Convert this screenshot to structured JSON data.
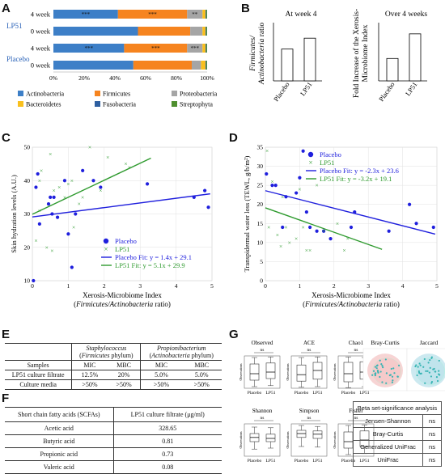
{
  "panel_labels": {
    "A": "A",
    "B": "B",
    "C": "C",
    "D": "D",
    "E": "E",
    "F": "F",
    "G": "G"
  },
  "chart_data": [
    {
      "id": "A",
      "type": "bar",
      "orientation": "horizontal-stacked",
      "groups": [
        "LP51",
        "Placebo"
      ],
      "categories": [
        "4 week",
        "0 week",
        "4 week",
        "0 week"
      ],
      "xticks": [
        "0%",
        "20%",
        "40%",
        "60%",
        "80%",
        "100%"
      ],
      "series": [
        {
          "name": "Actinobacteria",
          "color": "#3d7fc7",
          "values": [
            42,
            55,
            46,
            52
          ]
        },
        {
          "name": "Firmicutes",
          "color": "#f6841f",
          "values": [
            45,
            34,
            41,
            38
          ]
        },
        {
          "name": "Proteobacteria",
          "color": "#a5a5a5",
          "values": [
            10,
            8,
            10,
            6
          ]
        },
        {
          "name": "Bacteroidetes",
          "color": "#f9c01e",
          "values": [
            2,
            2,
            2,
            3
          ]
        },
        {
          "name": "Fusobacteria",
          "color": "#2e5fa0",
          "values": [
            0.5,
            0.5,
            0.5,
            0.5
          ]
        },
        {
          "name": "Streptophyta",
          "color": "#4f8f2f",
          "values": [
            0.5,
            0.5,
            0.5,
            0.5
          ]
        }
      ],
      "annotations": [
        {
          "row": 0,
          "labels": [
            "***",
            "***",
            "**"
          ]
        },
        {
          "row": 2,
          "labels": [
            "***",
            "***",
            "***"
          ]
        }
      ]
    },
    {
      "id": "B1",
      "type": "bar",
      "title": "At week 4",
      "ylabel": "Firmicutes/ Actinobacteria ratio",
      "categories": [
        "Placebo",
        "LP51"
      ],
      "values": [
        0.82,
        1.1
      ],
      "ylim": [
        0,
        1.5
      ]
    },
    {
      "id": "B2",
      "type": "bar",
      "title": "Over 4 weeks",
      "ylabel": "Fold Increase of the Xerosis-Microbiome Index",
      "categories": [
        "Placebo",
        "LP51"
      ],
      "values": [
        1.0,
        2.1
      ],
      "ylim": [
        0,
        2.6
      ]
    },
    {
      "id": "C",
      "type": "scatter",
      "xlabel": "Xerosis-Microbiome Index",
      "xlabel2": "(Firmicutes/Actinobacteria ratio)",
      "ylabel": "Skin hydration levels (A.U.)",
      "xlim": [
        0,
        5
      ],
      "ylim": [
        10,
        50
      ],
      "xticks": [
        "0",
        "1",
        "2",
        "3",
        "4",
        "5"
      ],
      "yticks": [
        "10",
        "20",
        "30",
        "40",
        "50"
      ],
      "legend": [
        "Placebo",
        "LP51",
        "Placebo Fit: y = 1.4x + 29.1",
        "LP51 Fit: y = 5.1x + 29.9"
      ],
      "series": [
        {
          "name": "Placebo",
          "color": "#1f1fdd",
          "marker": "circle",
          "points": [
            [
              0.03,
              10
            ],
            [
              0.1,
              38
            ],
            [
              0.15,
              42
            ],
            [
              0.2,
              27
            ],
            [
              0.45,
              33
            ],
            [
              0.5,
              35
            ],
            [
              0.55,
              30
            ],
            [
              0.6,
              35
            ],
            [
              0.7,
              29
            ],
            [
              0.9,
              40
            ],
            [
              1.0,
              24
            ],
            [
              1.1,
              14
            ],
            [
              1.2,
              30
            ],
            [
              1.4,
              43
            ],
            [
              1.7,
              40
            ],
            [
              1.9,
              38
            ],
            [
              3.2,
              39
            ],
            [
              4.5,
              35
            ],
            [
              4.8,
              37
            ],
            [
              4.9,
              32
            ]
          ]
        },
        {
          "name": "LP51",
          "color": "#2e9a2e",
          "marker": "x",
          "points": [
            [
              0.1,
              22
            ],
            [
              0.2,
              31
            ],
            [
              0.2,
              40
            ],
            [
              0.25,
              43
            ],
            [
              0.4,
              20
            ],
            [
              0.5,
              48
            ],
            [
              0.55,
              19
            ],
            [
              0.6,
              37
            ],
            [
              0.75,
              38
            ],
            [
              0.9,
              35
            ],
            [
              1.0,
              39
            ],
            [
              1.1,
              40
            ],
            [
              1.15,
              26
            ],
            [
              1.3,
              33
            ],
            [
              1.4,
              35
            ],
            [
              1.6,
              50
            ],
            [
              1.9,
              37
            ],
            [
              2.1,
              47
            ],
            [
              2.6,
              45
            ],
            [
              2.7,
              44
            ]
          ]
        }
      ],
      "fits": [
        {
          "name": "Placebo Fit",
          "color": "#1f1fdd",
          "slope": 1.4,
          "intercept": 29.1,
          "x": [
            0,
            4.95
          ]
        },
        {
          "name": "LP51 Fit",
          "color": "#2e9a2e",
          "slope": 5.1,
          "intercept": 29.9,
          "x": [
            0,
            3.3
          ]
        }
      ]
    },
    {
      "id": "D",
      "type": "scatter",
      "xlabel": "Xerosis-Microbiome Index",
      "xlabel2": "(Firmicutes/Actinobacteria ratio)",
      "ylabel": "Transpidermal water loss (TEWL, g/h/m²)",
      "xlim": [
        0,
        5
      ],
      "ylim": [
        0,
        35
      ],
      "xticks": [
        "0",
        "1",
        "2",
        "3",
        "4",
        "5"
      ],
      "yticks": [
        "0",
        "5",
        "10",
        "15",
        "20",
        "25",
        "30",
        "35"
      ],
      "legend": [
        "Placebo",
        "LP51",
        "Placebo Fit: y = -2.3x + 23.6",
        "LP51 Fit: y = -3.2x + 19.1"
      ],
      "series": [
        {
          "name": "Placebo",
          "color": "#1f1fdd",
          "marker": "circle",
          "points": [
            [
              0.03,
              28
            ],
            [
              0.2,
              25
            ],
            [
              0.3,
              25
            ],
            [
              0.5,
              14
            ],
            [
              0.6,
              22
            ],
            [
              0.9,
              23
            ],
            [
              1.0,
              27
            ],
            [
              1.1,
              34
            ],
            [
              1.2,
              18
            ],
            [
              1.3,
              14
            ],
            [
              1.5,
              13
            ],
            [
              1.7,
              13
            ],
            [
              1.9,
              11
            ],
            [
              2.5,
              14
            ],
            [
              2.6,
              18
            ],
            [
              3.6,
              13
            ],
            [
              4.2,
              20
            ],
            [
              4.4,
              15
            ],
            [
              4.9,
              14
            ]
          ]
        },
        {
          "name": "LP51",
          "color": "#2e9a2e",
          "marker": "x",
          "points": [
            [
              0.05,
              34
            ],
            [
              0.1,
              14
            ],
            [
              0.2,
              26
            ],
            [
              0.35,
              12
            ],
            [
              0.45,
              9
            ],
            [
              0.5,
              22
            ],
            [
              0.6,
              14
            ],
            [
              0.7,
              10
            ],
            [
              0.9,
              11
            ],
            [
              1.0,
              24
            ],
            [
              1.1,
              14
            ],
            [
              1.2,
              8
            ],
            [
              1.3,
              8
            ],
            [
              1.5,
              25
            ],
            [
              1.7,
              13
            ],
            [
              2.1,
              15
            ],
            [
              2.3,
              8
            ],
            [
              2.4,
              11
            ]
          ]
        }
      ],
      "fits": [
        {
          "name": "Placebo Fit",
          "color": "#1f1fdd",
          "slope": -2.3,
          "intercept": 23.6,
          "x": [
            0,
            4.95
          ]
        },
        {
          "name": "LP51 Fit",
          "color": "#2e9a2e",
          "slope": -3.2,
          "intercept": 19.1,
          "x": [
            0,
            3.4
          ]
        }
      ]
    },
    {
      "id": "G-box",
      "type": "box",
      "panels": [
        {
          "title": "Observed",
          "sig": "ns",
          "ylabel": "Observations",
          "boxes": [
            {
              "label": "Placebo",
              "q1": 0.25,
              "med": 0.45,
              "q3": 0.75,
              "lo": 0.05,
              "hi": 0.95
            },
            {
              "label": "LP51",
              "q1": 0.3,
              "med": 0.5,
              "q3": 0.78,
              "lo": 0.08,
              "hi": 0.97
            }
          ]
        },
        {
          "title": "ACE",
          "sig": "ns",
          "ylabel": "Observations",
          "boxes": [
            {
              "label": "Placebo",
              "q1": 0.22,
              "med": 0.42,
              "q3": 0.72,
              "lo": 0.03,
              "hi": 0.95
            },
            {
              "label": "LP51",
              "q1": 0.28,
              "med": 0.55,
              "q3": 0.8,
              "lo": 0.05,
              "hi": 0.97
            }
          ]
        },
        {
          "title": "Chao1",
          "sig": "ns",
          "ylabel": "Observations",
          "boxes": [
            {
              "label": "Placebo",
              "q1": 0.2,
              "med": 0.45,
              "q3": 0.8,
              "lo": 0.02,
              "hi": 0.97
            },
            {
              "label": "LP51",
              "q1": 0.28,
              "med": 0.5,
              "q3": 0.82,
              "lo": 0.05,
              "hi": 0.95
            }
          ]
        },
        {
          "title": "Shannon",
          "sig": "ns",
          "ylabel": "Observations",
          "boxes": [
            {
              "label": "Placebo",
              "q1": 0.45,
              "med": 0.58,
              "q3": 0.7,
              "lo": 0.22,
              "hi": 0.9
            },
            {
              "label": "LP51",
              "q1": 0.45,
              "med": 0.55,
              "q3": 0.68,
              "lo": 0.25,
              "hi": 0.88
            }
          ]
        },
        {
          "title": "Simpson",
          "sig": "ns",
          "ylabel": "Observations",
          "boxes": [
            {
              "label": "Placebo",
              "q1": 0.58,
              "med": 0.7,
              "q3": 0.8,
              "lo": 0.3,
              "hi": 0.95
            },
            {
              "label": "LP51",
              "q1": 0.55,
              "med": 0.68,
              "q3": 0.78,
              "lo": 0.28,
              "hi": 0.92
            }
          ]
        },
        {
          "title": "Fisher",
          "sig": "ns",
          "ylabel": "Observations",
          "boxes": [
            {
              "label": "Placebo",
              "q1": 0.25,
              "med": 0.45,
              "q3": 0.75,
              "lo": 0.05,
              "hi": 0.95
            },
            {
              "label": "LP51",
              "q1": 0.3,
              "med": 0.5,
              "q3": 0.78,
              "lo": 0.08,
              "hi": 0.97
            }
          ]
        }
      ]
    }
  ],
  "ordination": [
    {
      "title": "Bray-Curtis",
      "fill": "#f5c9c9",
      "pointColor": "#37b4b4"
    },
    {
      "title": "Jaccard",
      "fill": "#bfe4ec",
      "pointColor": "#37b4b4"
    }
  ],
  "beta_table": {
    "title": "Beta set-significance analysis",
    "rows": [
      [
        "Jensen-Shannon",
        "ns"
      ],
      [
        "Bray-Curtis",
        "ns"
      ],
      [
        "Generalized UniFrac",
        "ns"
      ],
      [
        "UniFrac",
        "ns"
      ]
    ]
  },
  "table_E": {
    "col1_head": "Staphylococcus",
    "col1_sub_prefix": "(",
    "col1_sub_italic": "Firmicutes",
    "col1_sub_suffix": " phylum)",
    "col2_head": "Propionibacterium",
    "col2_sub_prefix": "(",
    "col2_sub_italic": "Actinobacteria",
    "col2_sub_suffix": " phylum)",
    "row_head": "Samples",
    "sub_heads": [
      "MIC",
      "MBC",
      "MIC",
      "MBC"
    ],
    "rows": [
      [
        "LP51 culture filtrate",
        "12.5%",
        "20%",
        "5.0%",
        "5.0%"
      ],
      [
        "Culture media",
        ">50%",
        ">50%",
        ">50%",
        ">50%"
      ]
    ]
  },
  "table_F": {
    "head": [
      "Short chain fatty acids (SCFAs)",
      "LP51 culture filtrate (μg/ml)"
    ],
    "rows": [
      [
        "Acetic acid",
        "328.65"
      ],
      [
        "Butyric acid",
        "0.81"
      ],
      [
        "Propionic acid",
        "0.73"
      ],
      [
        "Valeric acid",
        "0.08"
      ]
    ]
  }
}
